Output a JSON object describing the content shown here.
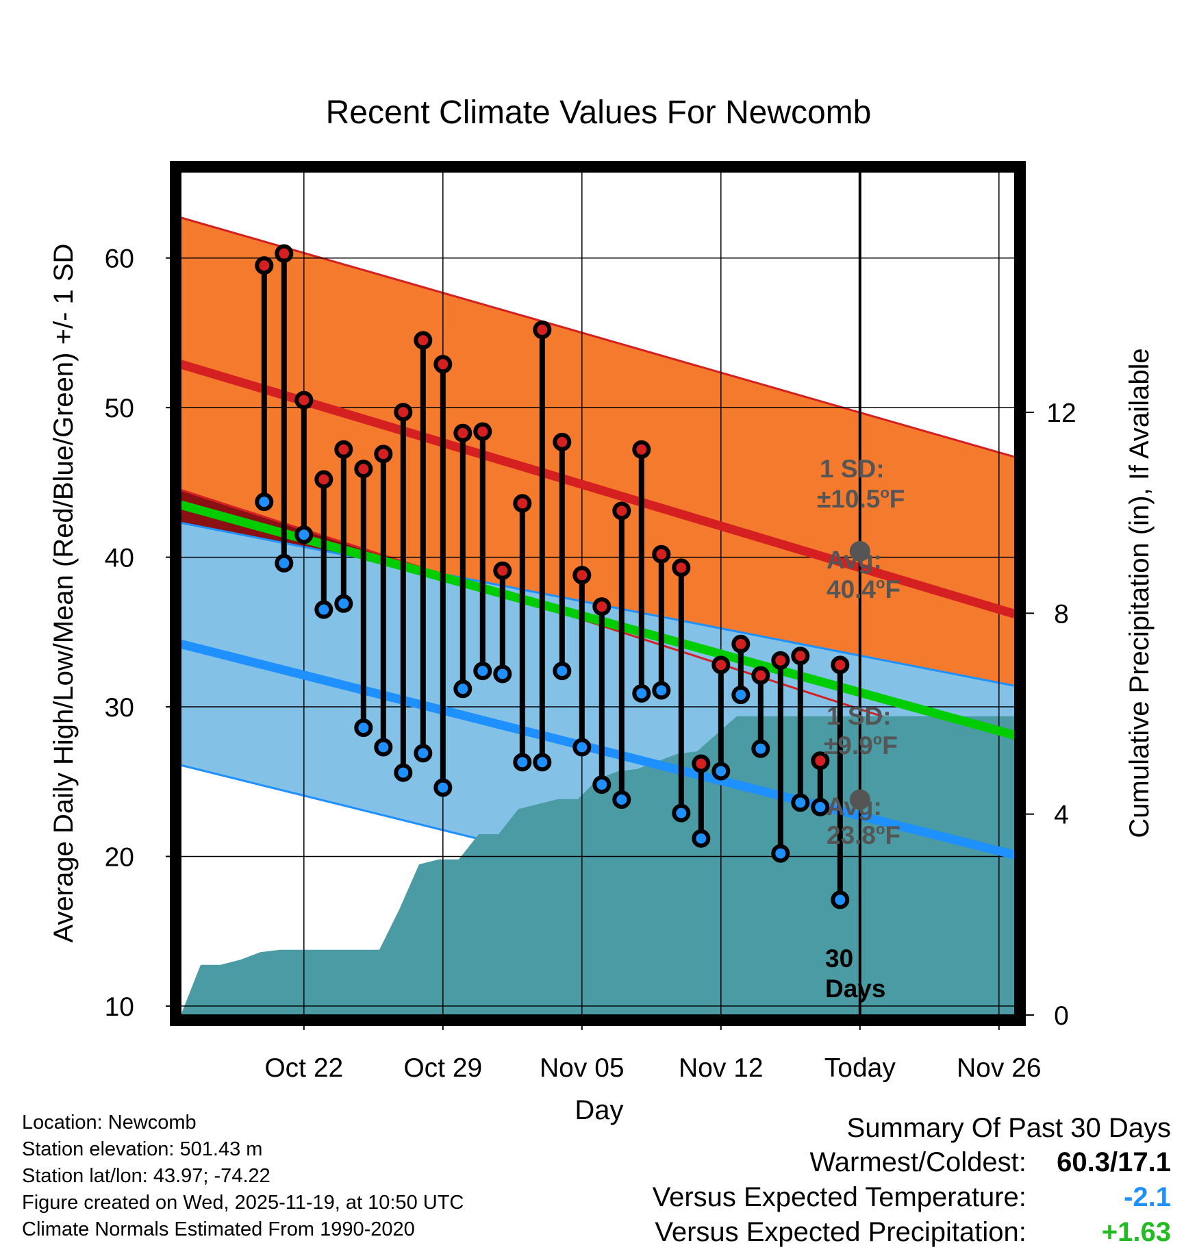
{
  "chart_data": {
    "type": "line",
    "title": "Recent Climate Values For Newcomb",
    "xlabel": "Day",
    "ylabel": "Average Daily High/Low/Mean (Red/Blue/Green) +/- 1 SD",
    "y2label": "Cumulative Precipitation (in), If Available",
    "xlim": [
      -3.2,
      38.8
    ],
    "ylim": [
      9.4,
      65.8
    ],
    "y2lim": [
      0,
      16.8
    ],
    "today_index": 30,
    "x_ticks": [
      {
        "index": 3,
        "label": "Oct 22"
      },
      {
        "index": 10,
        "label": "Oct 29"
      },
      {
        "index": 17,
        "label": "Nov 05"
      },
      {
        "index": 24,
        "label": "Nov 12"
      },
      {
        "index": 31,
        "label": "Today"
      },
      {
        "index": 38,
        "label": "Nov 26"
      }
    ],
    "y_ticks": [
      "10",
      "20",
      "30",
      "40",
      "50",
      "60"
    ],
    "y2_ticks": [
      "0",
      "4",
      "8",
      "12"
    ],
    "daily_high": [
      59.5,
      60.3,
      50.5,
      45.2,
      47.2,
      45.9,
      46.9,
      49.7,
      54.5,
      52.9,
      48.3,
      48.4,
      39.1,
      43.6,
      55.2,
      47.7,
      38.8,
      36.7,
      43.1,
      47.2,
      40.2,
      39.3,
      26.2,
      32.8,
      34.2,
      32.1,
      33.1,
      33.4,
      26.4,
      32.8
    ],
    "daily_low": [
      43.7,
      39.6,
      41.5,
      36.5,
      36.9,
      28.6,
      27.3,
      25.6,
      26.9,
      24.6,
      31.2,
      32.4,
      32.2,
      26.3,
      26.3,
      32.4,
      27.3,
      24.8,
      23.8,
      30.9,
      31.1,
      22.9,
      21.2,
      25.7,
      30.8,
      27.2,
      20.2,
      23.6,
      23.3,
      17.1
    ],
    "cumulative_precip": [
      0.0,
      1.0,
      1.0,
      1.1,
      1.25,
      1.3,
      1.3,
      1.3,
      1.3,
      1.3,
      1.3,
      2.1,
      3.0,
      3.1,
      3.1,
      3.6,
      3.6,
      4.1,
      4.2,
      4.3,
      4.3,
      4.7,
      4.85,
      4.9,
      5.05,
      5.2,
      5.25,
      5.6,
      5.95,
      5.95,
      5.95,
      5.95,
      5.95,
      5.95,
      5.95,
      5.95,
      5.95,
      5.95,
      5.95,
      5.95,
      5.95,
      5.95
    ],
    "normals": {
      "x_range": [
        -3.2,
        38.8
      ],
      "high_avg": [
        52.9,
        36.2
      ],
      "high_upper": [
        62.7,
        46.7
      ],
      "high_lower": [
        44.5,
        26.5
      ],
      "low_avg": [
        34.2,
        20.1
      ],
      "low_upper": [
        42.3,
        31.4
      ],
      "low_lower": [
        26.1,
        12.3
      ],
      "mean_avg": [
        43.5,
        28.1
      ]
    },
    "series": [
      {
        "name": "Daily High",
        "color": "#d42020"
      },
      {
        "name": "Daily Low",
        "color": "#1e90ff"
      },
      {
        "name": "Mean Normal",
        "color": "#00cc00"
      },
      {
        "name": "Cumulative Precipitation",
        "color": "#4a9ba3"
      }
    ],
    "annotations": {
      "high_sd_label": "1 SD:",
      "high_sd_value": "±10.5",
      "high_avg_label": "Avg:",
      "high_avg_value": "40.4",
      "low_sd_label": "1 SD:",
      "low_sd_value": "±9.9",
      "low_avg_label": "Avg:",
      "low_avg_value": "23.8",
      "degree_unit": "o",
      "temp_unit": "F",
      "high_avg_point": 40.4,
      "low_avg_point": 23.8,
      "days_label_1": "30",
      "days_label_2": "Days"
    }
  },
  "info": {
    "location": "Location: Newcomb",
    "elevation": "Station elevation: 501.43 m",
    "latlon": "Station lat/lon: 43.97; -74.22",
    "created": "Figure created on Wed, 2025-11-19, at 10:50 UTC",
    "normals": "Climate Normals Estimated From 1990-2020"
  },
  "summary": {
    "title": "Summary Of Past 30 Days",
    "warm_cold_label": "Warmest/Coldest:",
    "warm_cold_value": "60.3/17.1",
    "temp_label": "Versus Expected Temperature:",
    "temp_value": "-2.1",
    "temp_color": "#1e90ff",
    "precip_label": "Versus Expected Precipitation:",
    "precip_value": "+1.63",
    "precip_color": "#22bb22"
  },
  "colors": {
    "high_band": "#f47a2e",
    "high_line": "#d42020",
    "dark_red": "#8b1014",
    "low_band": "#83c1e6",
    "low_line": "#1e90ff",
    "mean_line": "#00cc00",
    "precip": "#4a9ba3",
    "avg_marker": "#555555",
    "annot_text": "#555555"
  }
}
